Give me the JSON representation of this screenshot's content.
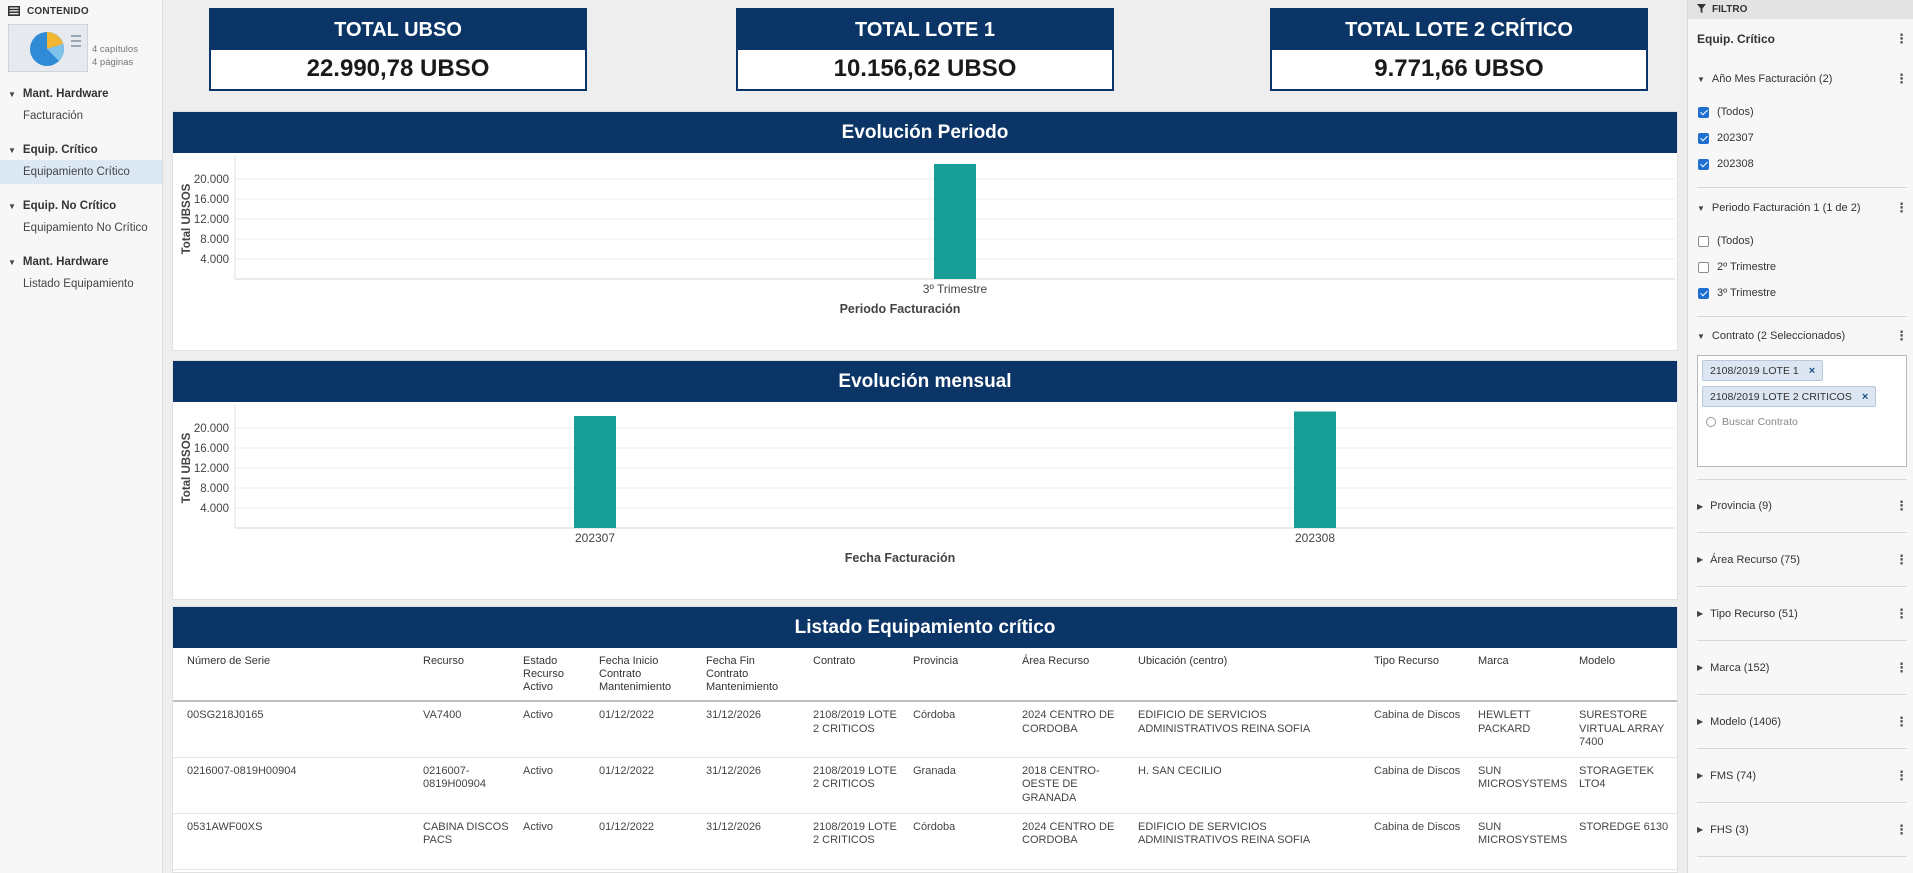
{
  "sidebar": {
    "header": "CONTENIDO",
    "chapters": "4 capítulos",
    "pages": "4 páginas",
    "sections": [
      {
        "title": "Mant. Hardware",
        "item": "Facturación"
      },
      {
        "title": "Equip. Crítico",
        "item": "Equipamiento Crítico"
      },
      {
        "title": "Equip. No Crítico",
        "item": "Equipamiento No Crítico"
      },
      {
        "title": "Mant. Hardware",
        "item": "Listado Equipamiento"
      }
    ]
  },
  "kpis": [
    {
      "title": "TOTAL UBSO",
      "value": "22.990,78 UBSO"
    },
    {
      "title": "TOTAL LOTE 1",
      "value": "10.156,62 UBSO"
    },
    {
      "title": "TOTAL LOTE 2 CRÍTICO",
      "value": "9.771,66 UBSO"
    }
  ],
  "chart_data": [
    {
      "type": "bar",
      "title": "Evolución Periodo",
      "xlabel": "Periodo Facturación",
      "ylabel": "Total UBSOS",
      "categories": [
        "3º Trimestre"
      ],
      "values": [
        23000
      ],
      "yticks": [
        "4.000",
        "8.000",
        "12.000",
        "16.000",
        "20.000"
      ],
      "ylim": [
        0,
        24000
      ],
      "color": "#179e96",
      "grid": true
    },
    {
      "type": "bar",
      "title": "Evolución mensual",
      "xlabel": "Fecha Facturación",
      "ylabel": "Total UBSOS",
      "categories": [
        "202307",
        "202308"
      ],
      "values": [
        22400,
        23300
      ],
      "yticks": [
        "4.000",
        "8.000",
        "12.000",
        "16.000",
        "20.000"
      ],
      "ylim": [
        0,
        24000
      ],
      "color": "#179e96",
      "grid": true
    }
  ],
  "table": {
    "title": "Listado Equipamiento crítico",
    "columns": [
      "Número de Serie",
      "Recurso",
      "Estado Recurso Activo",
      "Fecha Inicio Contrato Mantenimiento",
      "Fecha Fin Contrato Mantenimiento",
      "Contrato",
      "Provincia",
      "Área Recurso",
      "Ubicación (centro)",
      "Tipo Recurso",
      "Marca",
      "Modelo"
    ],
    "rows": [
      [
        "00SG218J0165",
        "VA7400",
        "Activo",
        "01/12/2022",
        "31/12/2026",
        "2108/2019 LOTE 2 CRITICOS",
        "Córdoba",
        "2024 CENTRO DE CORDOBA",
        "EDIFICIO DE SERVICIOS ADMINISTRATIVOS REINA SOFIA",
        "Cabina de Discos",
        "HEWLETT PACKARD",
        "SURESTORE VIRTUAL ARRAY 7400"
      ],
      [
        "0216007-0819H00904",
        "0216007-0819H00904",
        "Activo",
        "01/12/2022",
        "31/12/2026",
        "2108/2019 LOTE 2 CRITICOS",
        "Granada",
        "2018 CENTRO-OESTE DE GRANADA",
        "H. SAN CECILIO",
        "Cabina de Discos",
        "SUN MICROSYSTEMS",
        "STORAGETEK LTO4"
      ],
      [
        "0531AWF00XS",
        "CABINA DISCOS PACS",
        "Activo",
        "01/12/2022",
        "31/12/2026",
        "2108/2019 LOTE 2 CRITICOS",
        "Córdoba",
        "2024 CENTRO DE CORDOBA",
        "EDIFICIO DE SERVICIOS ADMINISTRATIVOS REINA SOFIA",
        "Cabina de Discos",
        "SUN MICROSYSTEMS",
        "STOREDGE 6130"
      ]
    ]
  },
  "filter": {
    "header": "FILTRO",
    "name": "Equip. Crítico",
    "groups": {
      "anio_mes": {
        "label": "Año Mes Facturación (2)",
        "options": [
          {
            "label": "(Todos)",
            "checked": true
          },
          {
            "label": "202307",
            "checked": true
          },
          {
            "label": "202308",
            "checked": true
          }
        ]
      },
      "periodo": {
        "label": "Periodo Facturación 1 (1 de 2)",
        "options": [
          {
            "label": "(Todos)",
            "checked": false
          },
          {
            "label": "2º Trimestre",
            "checked": false
          },
          {
            "label": "3º Trimestre",
            "checked": true
          }
        ]
      },
      "contrato": {
        "label": "Contrato (2 Seleccionados)",
        "chips": [
          "2108/2019 LOTE 1",
          "2108/2019 LOTE 2 CRITICOS"
        ],
        "search_placeholder": "Buscar Contrato"
      },
      "collapsed": [
        "Provincia (9)",
        "Área Recurso (75)",
        "Tipo Recurso (51)",
        "Marca (152)",
        "Modelo (1406)",
        "FMS (74)",
        "FHS (3)"
      ]
    }
  }
}
